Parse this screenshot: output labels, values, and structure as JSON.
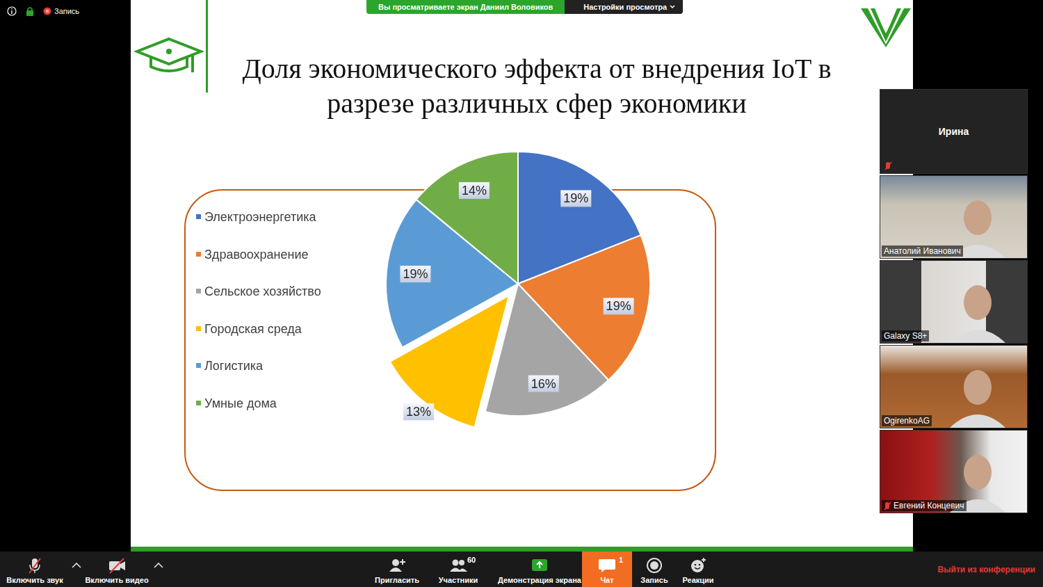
{
  "screen": {
    "recording": "Запись",
    "banner": "Вы просматриваете экран Даниил Воловиков",
    "view_options": "Настройки просмотра"
  },
  "chart_data": {
    "type": "pie",
    "title": "Доля экономического эффекта от внедрения IoT в разрезе различных сфер экономики",
    "categories": [
      "Электроэнергетика",
      "Здравоохранение",
      "Сельское хозяйство",
      "Городская среда",
      "Логистика",
      "Умные дома"
    ],
    "values": [
      19,
      19,
      16,
      13,
      19,
      14
    ],
    "value_labels": [
      "19%",
      "19%",
      "16%",
      "13%",
      "19%",
      "14%"
    ],
    "colors": [
      "#4472c4",
      "#ed7d31",
      "#a5a5a5",
      "#ffc000",
      "#5b9bd5",
      "#70ad47"
    ],
    "legend": "left",
    "data_labels": true
  },
  "participants": [
    {
      "name": "Ирина",
      "muted": true,
      "video": false
    },
    {
      "name": "Анатолий Иванович",
      "muted": false,
      "video": true
    },
    {
      "name": "Galaxy S8+",
      "muted": false,
      "video": true
    },
    {
      "name": "OgirenkoAG",
      "muted": false,
      "video": true
    },
    {
      "name": "Евгений Концевич",
      "muted": true,
      "video": true
    }
  ],
  "toolbar": {
    "audio": "Включить звук",
    "video": "Включить видео",
    "buttons": [
      {
        "label": "Пригласить"
      },
      {
        "label": "Участники",
        "badge": 60
      },
      {
        "label": "Демонстрация экрана"
      },
      {
        "label": "Чат",
        "badge": 1
      },
      {
        "label": "Запись"
      },
      {
        "label": "Реакции"
      }
    ],
    "leave": "Выйти из конференции"
  }
}
